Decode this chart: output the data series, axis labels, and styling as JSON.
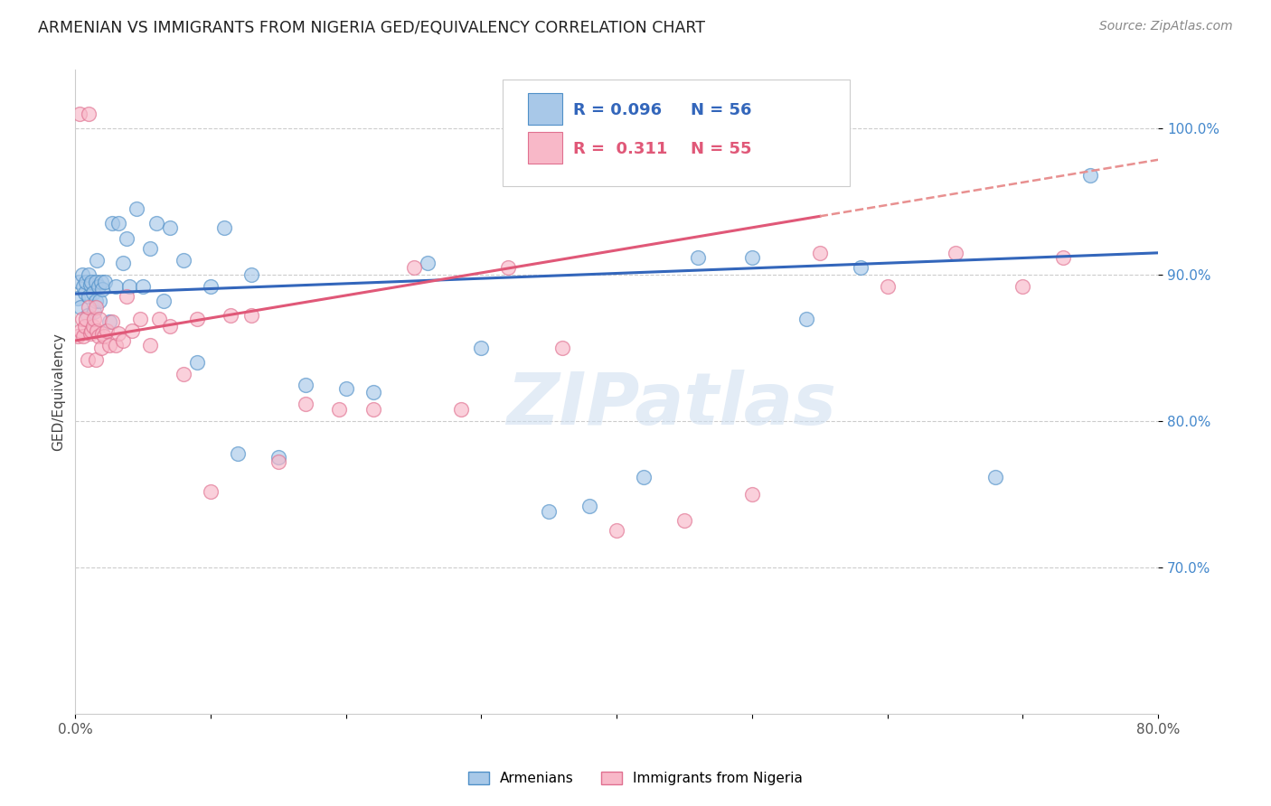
{
  "title": "ARMENIAN VS IMMIGRANTS FROM NIGERIA GED/EQUIVALENCY CORRELATION CHART",
  "source": "Source: ZipAtlas.com",
  "ylabel": "GED/Equivalency",
  "x_min": 0.0,
  "x_max": 0.8,
  "y_min": 0.6,
  "y_max": 1.04,
  "y_ticks": [
    0.7,
    0.8,
    0.9,
    1.0
  ],
  "y_tick_labels": [
    "70.0%",
    "80.0%",
    "90.0%",
    "100.0%"
  ],
  "legend_armenians": "Armenians",
  "legend_nigeria": "Immigrants from Nigeria",
  "R_armenians": 0.096,
  "N_armenians": 56,
  "R_nigeria": 0.311,
  "N_nigeria": 55,
  "color_blue_fill": "#a8c8e8",
  "color_blue_edge": "#5090c8",
  "color_blue_line": "#3366bb",
  "color_pink_fill": "#f8b8c8",
  "color_pink_edge": "#e07090",
  "color_pink_line": "#e05878",
  "color_pink_dashed": "#e89090",
  "color_title": "#222222",
  "color_source": "#888888",
  "color_right_labels": "#4488cc",
  "color_grid": "#cccccc",
  "watermark": "ZIPatlas",
  "arm_x": [
    0.002,
    0.003,
    0.004,
    0.005,
    0.006,
    0.007,
    0.008,
    0.009,
    0.01,
    0.01,
    0.011,
    0.012,
    0.013,
    0.014,
    0.015,
    0.015,
    0.016,
    0.017,
    0.018,
    0.019,
    0.02,
    0.022,
    0.025,
    0.027,
    0.03,
    0.032,
    0.035,
    0.038,
    0.04,
    0.045,
    0.05,
    0.055,
    0.06,
    0.065,
    0.07,
    0.08,
    0.09,
    0.1,
    0.11,
    0.12,
    0.13,
    0.15,
    0.17,
    0.2,
    0.22,
    0.26,
    0.3,
    0.35,
    0.38,
    0.42,
    0.46,
    0.5,
    0.54,
    0.58,
    0.68,
    0.75
  ],
  "arm_y": [
    0.884,
    0.895,
    0.878,
    0.9,
    0.892,
    0.888,
    0.895,
    0.872,
    0.9,
    0.885,
    0.893,
    0.895,
    0.888,
    0.875,
    0.895,
    0.882,
    0.91,
    0.892,
    0.882,
    0.895,
    0.89,
    0.895,
    0.868,
    0.935,
    0.892,
    0.935,
    0.908,
    0.925,
    0.892,
    0.945,
    0.892,
    0.918,
    0.935,
    0.882,
    0.932,
    0.91,
    0.84,
    0.892,
    0.932,
    0.778,
    0.9,
    0.775,
    0.825,
    0.822,
    0.82,
    0.908,
    0.85,
    0.738,
    0.742,
    0.762,
    0.912,
    0.912,
    0.87,
    0.905,
    0.762,
    0.968
  ],
  "nig_x": [
    0.002,
    0.003,
    0.004,
    0.005,
    0.006,
    0.007,
    0.008,
    0.009,
    0.01,
    0.011,
    0.012,
    0.013,
    0.014,
    0.015,
    0.015,
    0.016,
    0.017,
    0.018,
    0.019,
    0.02,
    0.021,
    0.023,
    0.025,
    0.027,
    0.03,
    0.032,
    0.035,
    0.038,
    0.042,
    0.048,
    0.055,
    0.062,
    0.07,
    0.08,
    0.09,
    0.1,
    0.115,
    0.13,
    0.15,
    0.17,
    0.195,
    0.22,
    0.25,
    0.285,
    0.32,
    0.36,
    0.4,
    0.45,
    0.5,
    0.55,
    0.6,
    0.65,
    0.7,
    0.73,
    0.01
  ],
  "nig_y": [
    0.858,
    1.01,
    0.862,
    0.87,
    0.858,
    0.865,
    0.87,
    0.842,
    0.878,
    0.86,
    0.862,
    0.865,
    0.87,
    0.842,
    0.878,
    0.862,
    0.858,
    0.87,
    0.85,
    0.86,
    0.858,
    0.862,
    0.852,
    0.868,
    0.852,
    0.86,
    0.855,
    0.885,
    0.862,
    0.87,
    0.852,
    0.87,
    0.865,
    0.832,
    0.87,
    0.752,
    0.872,
    0.872,
    0.772,
    0.812,
    0.808,
    0.808,
    0.905,
    0.808,
    0.905,
    0.85,
    0.725,
    0.732,
    0.75,
    0.915,
    0.892,
    0.915,
    0.892,
    0.912,
    1.01
  ]
}
